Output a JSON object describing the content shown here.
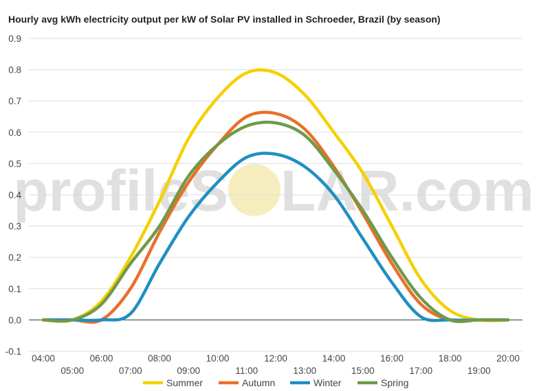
{
  "watermark": {
    "text_left": "profileS",
    "text_right": "LAR.com",
    "sun_color": "#f3e7a8"
  },
  "chart_data": {
    "type": "line",
    "title": "Hourly avg kWh electricity output per kW of Solar PV installed in Schroeder, Brazil (by season)",
    "xlabel": "",
    "ylabel": "",
    "ylim": [
      -0.1,
      0.9
    ],
    "yticks": [
      "-0.1",
      "0.0",
      "0.1",
      "0.2",
      "0.3",
      "0.4",
      "0.5",
      "0.6",
      "0.7",
      "0.8",
      "0.9"
    ],
    "categories": [
      "04:00",
      "05:00",
      "06:00",
      "07:00",
      "08:00",
      "09:00",
      "10:00",
      "11:00",
      "12:00",
      "13:00",
      "14:00",
      "15:00",
      "16:00",
      "17:00",
      "18:00",
      "19:00",
      "20:00"
    ],
    "grid": true,
    "legend_position": "bottom",
    "series": [
      {
        "name": "Summer",
        "color": "#f5d000",
        "values": [
          0.0,
          0.0,
          0.06,
          0.2,
          0.38,
          0.58,
          0.71,
          0.79,
          0.79,
          0.72,
          0.6,
          0.47,
          0.3,
          0.13,
          0.03,
          0.0,
          0.0
        ]
      },
      {
        "name": "Autumn",
        "color": "#e8702a",
        "values": [
          0.0,
          0.0,
          0.0,
          0.1,
          0.28,
          0.44,
          0.56,
          0.65,
          0.66,
          0.61,
          0.49,
          0.34,
          0.18,
          0.05,
          0.0,
          0.0,
          0.0
        ]
      },
      {
        "name": "Winter",
        "color": "#1f8fc2",
        "values": [
          0.0,
          0.0,
          0.0,
          0.02,
          0.18,
          0.33,
          0.44,
          0.52,
          0.53,
          0.49,
          0.4,
          0.26,
          0.12,
          0.01,
          0.0,
          0.0,
          0.0
        ]
      },
      {
        "name": "Spring",
        "color": "#6f9a4a",
        "values": [
          0.0,
          0.0,
          0.05,
          0.18,
          0.3,
          0.46,
          0.56,
          0.62,
          0.63,
          0.59,
          0.48,
          0.35,
          0.2,
          0.07,
          0.0,
          0.0,
          0.0
        ]
      }
    ]
  }
}
